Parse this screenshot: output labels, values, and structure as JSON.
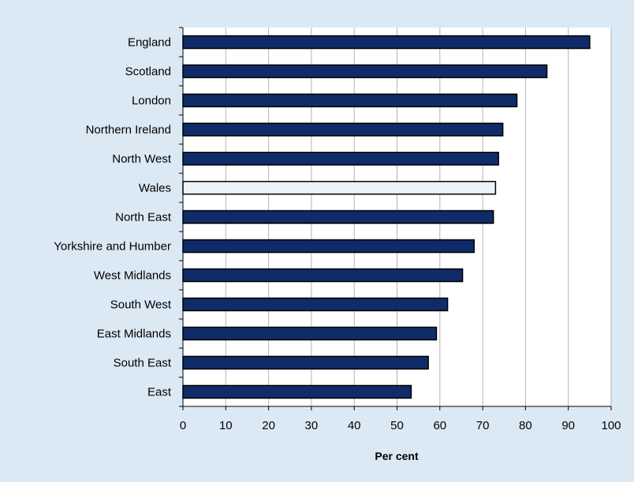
{
  "chart_data": {
    "type": "bar",
    "orientation": "horizontal",
    "categories": [
      "England",
      "Scotland",
      "London",
      "Northern Ireland",
      "North West",
      "Wales",
      "North East",
      "Yorkshire and Humber",
      "West Midlands",
      "South West",
      "East Midlands",
      "South East",
      "East"
    ],
    "values": [
      95,
      85,
      78,
      74.7,
      73.7,
      73,
      72.5,
      68,
      65.3,
      61.8,
      59.2,
      57.3,
      53.3
    ],
    "highlight_category": "Wales",
    "title": "",
    "xlabel": "Per cent",
    "ylabel": "",
    "xlim": [
      0,
      100
    ],
    "xticks": [
      0,
      10,
      20,
      30,
      40,
      50,
      60,
      70,
      80,
      90,
      100
    ],
    "grid": "vertical",
    "colors": {
      "background": "#dbe9f5",
      "plot_area": "#ffffff",
      "bar": "#0f2c68",
      "highlight_bar": "#eaf2fa",
      "bar_outline": "#000000",
      "gridline": "#b4b4b4"
    }
  }
}
